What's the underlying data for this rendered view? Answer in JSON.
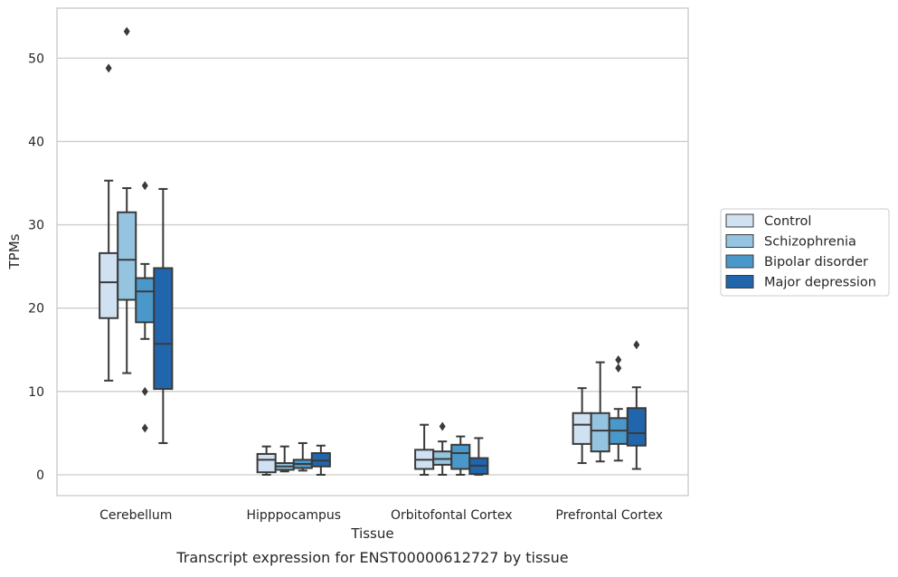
{
  "chart_data": {
    "type": "boxplot",
    "title": "",
    "caption": "Transcript expression for ENST00000612727 by tissue",
    "xlabel": "Tissue",
    "ylabel": "TPMs",
    "ylim": [
      -2.5,
      56
    ],
    "yticks": [
      0,
      10,
      20,
      30,
      40,
      50
    ],
    "grid": "horizontal",
    "legend_position": "right",
    "categories": [
      "Cerebellum",
      "Hipppocampus",
      "Orbitofontal Cortex",
      "Prefrontal Cortex"
    ],
    "series": [
      {
        "name": "Control",
        "color": "#d0e1f2",
        "boxes": [
          {
            "whisker_low": 11.3,
            "q1": 18.8,
            "median": 23.1,
            "q3": 26.6,
            "whisker_high": 35.3,
            "outliers": [
              48.8
            ]
          },
          {
            "whisker_low": 0.0,
            "q1": 0.3,
            "median": 1.8,
            "q3": 2.5,
            "whisker_high": 3.4,
            "outliers": []
          },
          {
            "whisker_low": 0.0,
            "q1": 0.7,
            "median": 1.8,
            "q3": 3.0,
            "whisker_high": 6.0,
            "outliers": []
          },
          {
            "whisker_low": 1.4,
            "q1": 3.7,
            "median": 6.0,
            "q3": 7.4,
            "whisker_high": 10.4,
            "outliers": []
          }
        ]
      },
      {
        "name": "Schizophrenia",
        "color": "#94c4df",
        "boxes": [
          {
            "whisker_low": 12.2,
            "q1": 21.0,
            "median": 25.8,
            "q3": 31.5,
            "whisker_high": 34.4,
            "outliers": [
              53.2
            ]
          },
          {
            "whisker_low": 0.4,
            "q1": 0.6,
            "median": 1.0,
            "q3": 1.4,
            "whisker_high": 3.4,
            "outliers": []
          },
          {
            "whisker_low": 0.0,
            "q1": 1.2,
            "median": 1.9,
            "q3": 2.8,
            "whisker_high": 4.0,
            "outliers": [
              5.8
            ]
          },
          {
            "whisker_low": 1.6,
            "q1": 2.8,
            "median": 5.3,
            "q3": 7.4,
            "whisker_high": 13.5,
            "outliers": []
          }
        ]
      },
      {
        "name": "Bipolar disorder",
        "color": "#4a98c9",
        "boxes": [
          {
            "whisker_low": 16.3,
            "q1": 18.3,
            "median": 22.0,
            "q3": 23.6,
            "whisker_high": 25.3,
            "outliers": [
              34.7,
              10.0,
              5.6
            ]
          },
          {
            "whisker_low": 0.5,
            "q1": 0.8,
            "median": 1.3,
            "q3": 1.8,
            "whisker_high": 3.8,
            "outliers": []
          },
          {
            "whisker_low": 0.0,
            "q1": 0.7,
            "median": 2.6,
            "q3": 3.6,
            "whisker_high": 4.6,
            "outliers": []
          },
          {
            "whisker_low": 1.7,
            "q1": 3.7,
            "median": 5.3,
            "q3": 6.8,
            "whisker_high": 7.9,
            "outliers": [
              13.8,
              12.8
            ]
          }
        ]
      },
      {
        "name": "Major depression",
        "color": "#2166ac",
        "boxes": [
          {
            "whisker_low": 3.8,
            "q1": 10.3,
            "median": 15.7,
            "q3": 24.8,
            "whisker_high": 34.3,
            "outliers": []
          },
          {
            "whisker_low": 0.0,
            "q1": 1.0,
            "median": 1.7,
            "q3": 2.6,
            "whisker_high": 3.5,
            "outliers": []
          },
          {
            "whisker_low": 0.0,
            "q1": 0.1,
            "median": 1.1,
            "q3": 2.0,
            "whisker_high": 4.4,
            "outliers": []
          },
          {
            "whisker_low": 0.7,
            "q1": 3.5,
            "median": 5.0,
            "q3": 8.0,
            "whisker_high": 10.5,
            "outliers": [
              15.6
            ]
          }
        ]
      }
    ]
  }
}
